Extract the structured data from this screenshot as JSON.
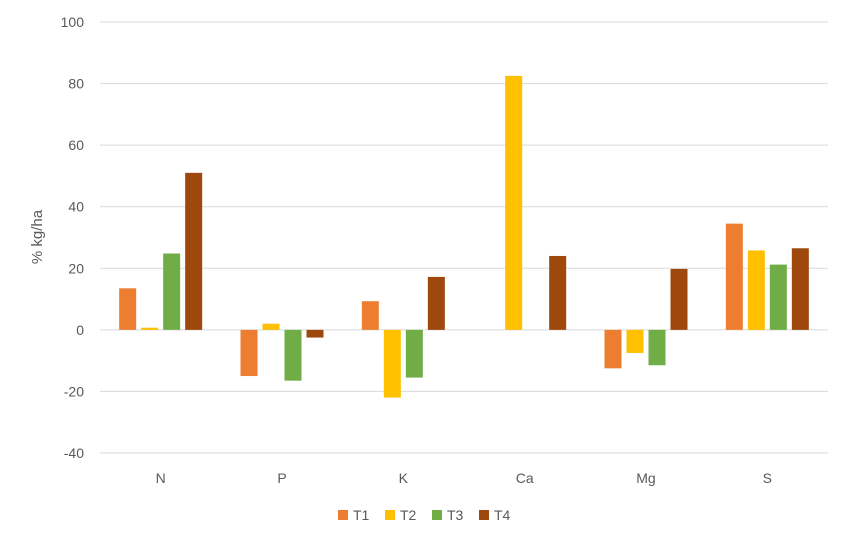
{
  "chart_data": {
    "type": "bar",
    "categories": [
      "N",
      "P",
      "K",
      "Ca",
      "Mg",
      "S"
    ],
    "series": [
      {
        "name": "T1",
        "color": "#ED7D31",
        "values": [
          13.5,
          -15,
          9.3,
          0,
          -12.5,
          34.5
        ]
      },
      {
        "name": "T2",
        "color": "#FFC000",
        "values": [
          0.7,
          2,
          -22,
          82.5,
          -7.5,
          25.8
        ]
      },
      {
        "name": "T3",
        "color": "#70AD47",
        "values": [
          24.8,
          -16.5,
          -15.5,
          0,
          -11.5,
          21.2
        ]
      },
      {
        "name": "T4",
        "color": "#9E480E",
        "values": [
          51,
          -2.5,
          17.2,
          24,
          19.8,
          26.5
        ]
      }
    ],
    "ylabel": "% kg/ha",
    "ylim": [
      -40,
      100
    ],
    "yticks": [
      -40,
      -20,
      0,
      20,
      40,
      60,
      80,
      100
    ],
    "grid": true,
    "legend": "bottom"
  }
}
